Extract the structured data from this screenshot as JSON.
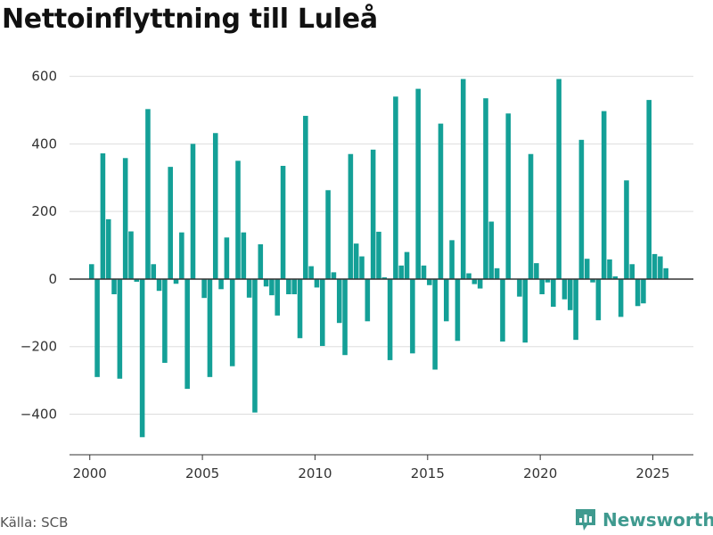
{
  "title": "Nettoinflyttning till Luleå",
  "source": "Källa: SCB",
  "brand": {
    "name": "Newsworthy",
    "icon": "newsworthy-logo-icon"
  },
  "colors": {
    "bar": "#14a097",
    "grid": "#dddddd",
    "zero_line": "#333333",
    "text": "#333333",
    "brand": "#3f9a8f"
  },
  "chart_data": {
    "type": "bar",
    "title": "Nettoinflyttning till Luleå",
    "xlabel": "",
    "ylabel": "",
    "ylim": [
      -520,
      620
    ],
    "xlim": [
      1999.1,
      2026.8
    ],
    "yticks": [
      600,
      400,
      200,
      0,
      -200,
      -400
    ],
    "ytick_labels": [
      "600",
      "400",
      "200",
      "0",
      "−200",
      "−400"
    ],
    "xticks": [
      2000,
      2005,
      2010,
      2015,
      2020,
      2025
    ],
    "xtick_labels": [
      "2000",
      "2005",
      "2010",
      "2015",
      "2020",
      "2025"
    ],
    "grid": true,
    "x": [
      2000.08,
      2000.33,
      2000.58,
      2000.83,
      2001.08,
      2001.33,
      2001.58,
      2001.83,
      2002.08,
      2002.33,
      2002.58,
      2002.83,
      2003.08,
      2003.33,
      2003.58,
      2003.83,
      2004.08,
      2004.33,
      2004.58,
      2004.83,
      2005.08,
      2005.33,
      2005.58,
      2005.83,
      2006.08,
      2006.33,
      2006.58,
      2006.83,
      2007.08,
      2007.33,
      2007.58,
      2007.83,
      2008.08,
      2008.33,
      2008.58,
      2008.83,
      2009.08,
      2009.33,
      2009.58,
      2009.83,
      2010.08,
      2010.33,
      2010.58,
      2010.83,
      2011.08,
      2011.33,
      2011.58,
      2011.83,
      2012.08,
      2012.33,
      2012.58,
      2012.83,
      2013.08,
      2013.33,
      2013.58,
      2013.83,
      2014.08,
      2014.33,
      2014.58,
      2014.83,
      2015.08,
      2015.33,
      2015.58,
      2015.83,
      2016.08,
      2016.33,
      2016.58,
      2016.83,
      2017.08,
      2017.33,
      2017.58,
      2017.83,
      2018.08,
      2018.33,
      2018.58,
      2018.83,
      2019.08,
      2019.33,
      2019.58,
      2019.83,
      2020.08,
      2020.33,
      2020.58,
      2020.83,
      2021.08,
      2021.33,
      2021.58,
      2021.83,
      2022.08,
      2022.33,
      2022.58,
      2022.83,
      2023.08,
      2023.33,
      2023.58,
      2023.83,
      2024.08,
      2024.33,
      2024.58,
      2024.83,
      2025.08,
      2025.33,
      2025.58
    ],
    "values": [
      44,
      -290,
      372,
      177,
      -45,
      -295,
      358,
      141,
      -8,
      -468,
      503,
      44,
      -35,
      -248,
      332,
      -14,
      138,
      -325,
      400,
      0,
      -56,
      -290,
      432,
      -30,
      123,
      -258,
      350,
      138,
      -55,
      -395,
      103,
      -22,
      -48,
      -108,
      335,
      -45,
      -45,
      -175,
      483,
      38,
      -25,
      -198,
      263,
      20,
      -130,
      -225,
      370,
      105,
      67,
      -125,
      383,
      140,
      5,
      -240,
      540,
      40,
      80,
      -220,
      563,
      40,
      -18,
      -268,
      460,
      -125,
      115,
      -183,
      592,
      17,
      -15,
      -28,
      535,
      170,
      32,
      -185,
      490,
      0,
      -52,
      -188,
      370,
      47,
      -45,
      -10,
      -82,
      592,
      -60,
      -92,
      -180,
      412,
      60,
      -10,
      -122,
      497,
      58,
      8,
      -112,
      292,
      44,
      -80,
      -72,
      530,
      74,
      67,
      32
    ]
  }
}
